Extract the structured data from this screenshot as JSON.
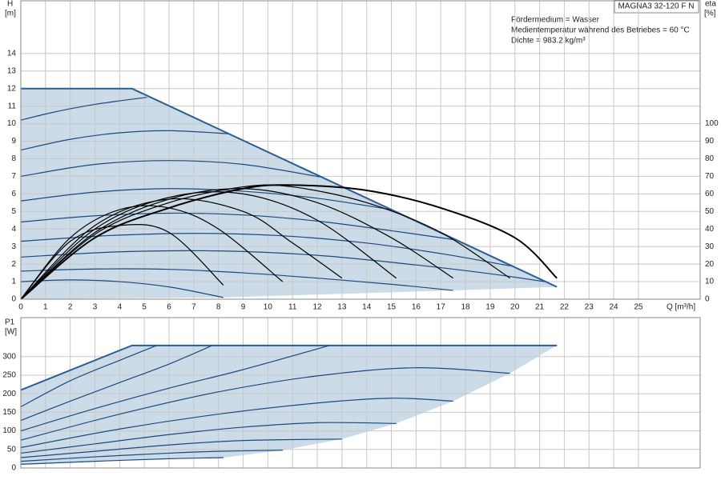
{
  "chart_data": [
    {
      "type": "line",
      "title": "MAGNA3 32-120 F N",
      "annotations": [
        "Fördermedium = Wasser",
        "Medientemperatur während des Betriebes = 60 °C",
        "Dichte = 983.2 kg/m³"
      ],
      "y_label": "H",
      "y_unit": "[m]",
      "y2_label": "eta",
      "y2_unit": "[%]",
      "x_label": "Q [m³/h]",
      "xlim": [
        0,
        27.5
      ],
      "xticks": [
        0,
        1,
        2,
        3,
        4,
        5,
        6,
        7,
        8,
        9,
        10,
        11,
        12,
        13,
        14,
        15,
        16,
        17,
        18,
        19,
        20,
        21,
        22,
        23,
        24,
        25
      ],
      "ylim": [
        0,
        17
      ],
      "yticks": [
        0,
        1,
        2,
        3,
        4,
        5,
        6,
        7,
        8,
        9,
        10,
        11,
        12,
        13,
        14
      ],
      "y2lim": [
        0,
        170
      ],
      "y2ticks": [
        0,
        10,
        20,
        30,
        40,
        50,
        60,
        70,
        80,
        90,
        100
      ],
      "grid": true,
      "area": {
        "color": "#cbdbe7",
        "x": [
          0,
          4.5,
          21.7,
          17.5,
          8.2,
          0
        ],
        "values": [
          12,
          12,
          0.7,
          0.5,
          0.1,
          0
        ]
      },
      "series": [
        {
          "color": "#2a5d96",
          "interpolation": "linear",
          "x": [
            0,
            4.5,
            21.7
          ],
          "values": [
            12,
            12,
            0.7
          ]
        },
        {
          "color": "#1b4a80",
          "x": [
            0,
            1,
            2,
            3,
            4,
            5.1
          ],
          "values": [
            10.2,
            10.55,
            10.85,
            11.1,
            11.3,
            11.5
          ]
        },
        {
          "color": "#1b4a80",
          "x": [
            0,
            2,
            4,
            6,
            8.4
          ],
          "values": [
            8.5,
            9.11,
            9.48,
            9.6,
            9.43
          ]
        },
        {
          "color": "#1b4a80",
          "x": [
            0,
            3,
            6,
            9,
            12.1
          ],
          "values": [
            7.0,
            7.68,
            7.9,
            7.68,
            6.97
          ]
        },
        {
          "color": "#1b4a80",
          "x": [
            0,
            3,
            6,
            9,
            12,
            15
          ],
          "values": [
            5.6,
            6.1,
            6.3,
            6.15,
            5.75,
            5.1
          ]
        },
        {
          "color": "#1b4a80",
          "x": [
            0,
            3,
            6,
            9,
            12,
            15,
            17.5
          ],
          "values": [
            4.4,
            4.75,
            4.9,
            4.8,
            4.45,
            3.9,
            3.4
          ]
        },
        {
          "color": "#1b4a80",
          "x": [
            0,
            3.5,
            7,
            10.5,
            14,
            17,
            19.8
          ],
          "values": [
            3.3,
            3.62,
            3.75,
            3.62,
            3.2,
            2.6,
            1.9
          ]
        },
        {
          "color": "#1b4a80",
          "x": [
            0,
            4,
            8,
            12,
            16,
            19,
            21.2
          ],
          "values": [
            2.4,
            2.7,
            2.75,
            2.5,
            1.95,
            1.45,
            1.0
          ]
        },
        {
          "color": "#1b4a80",
          "x": [
            0,
            3,
            6,
            9,
            12,
            15,
            17.5
          ],
          "values": [
            1.6,
            1.72,
            1.7,
            1.5,
            1.2,
            0.85,
            0.5
          ]
        },
        {
          "color": "#1b4a80",
          "x": [
            0,
            2,
            4,
            6,
            8.2
          ],
          "values": [
            1.0,
            1.1,
            1.0,
            0.7,
            0.1
          ]
        },
        {
          "color": "#000000",
          "axis": "y2",
          "x": [
            0,
            3,
            6,
            9,
            11,
            14,
            17,
            20,
            21.7
          ],
          "values": [
            0,
            35,
            52,
            63,
            65,
            62,
            52,
            35,
            12
          ]
        },
        {
          "color": "#000000",
          "axis": "y2",
          "x": [
            0,
            3,
            6,
            9,
            11,
            14,
            17,
            19.8
          ],
          "values": [
            0,
            37,
            55,
            64,
            64,
            55,
            38,
            12
          ]
        },
        {
          "color": "#000000",
          "axis": "y2",
          "x": [
            0,
            3,
            6,
            9,
            12,
            15,
            17.5
          ],
          "values": [
            0,
            38,
            57,
            63,
            55,
            35,
            12
          ]
        },
        {
          "color": "#000000",
          "axis": "y2",
          "x": [
            0,
            3,
            6,
            9,
            12,
            15.2
          ],
          "values": [
            0,
            40,
            58,
            60,
            45,
            12
          ]
        },
        {
          "color": "#000000",
          "axis": "y2",
          "x": [
            0,
            3,
            6,
            9,
            11,
            13
          ],
          "values": [
            0,
            42,
            57,
            50,
            32,
            12
          ]
        },
        {
          "color": "#000000",
          "axis": "y2",
          "x": [
            0,
            2,
            4,
            6,
            8,
            10.6
          ],
          "values": [
            0,
            35,
            51,
            52,
            40,
            10
          ]
        },
        {
          "color": "#000000",
          "axis": "y2",
          "x": [
            0,
            2,
            4,
            6,
            8.2
          ],
          "values": [
            0,
            33,
            42,
            38,
            8
          ]
        }
      ]
    },
    {
      "type": "line",
      "y_label": "P1",
      "y_unit": "[W]",
      "xlim": [
        0,
        27.5
      ],
      "xticks": [
        0,
        1,
        2,
        3,
        4,
        5,
        6,
        7,
        8,
        9,
        10,
        11,
        12,
        13,
        14,
        15,
        16,
        17,
        18,
        19,
        20,
        21,
        22,
        23,
        24,
        25
      ],
      "show_x_tick_labels": false,
      "ylim": [
        0,
        405
      ],
      "yticks": [
        0,
        50,
        100,
        150,
        200,
        250,
        300
      ],
      "grid": true,
      "area": {
        "color": "#cbdbe7",
        "x": [
          0,
          4.5,
          21.7,
          19.8,
          17.5,
          15.2,
          13,
          10.6,
          8.2,
          6,
          3,
          0
        ],
        "values": [
          210,
          330,
          330,
          255,
          180,
          120,
          78,
          48,
          28,
          25,
          18,
          10
        ]
      },
      "series": [
        {
          "color": "#2a5d96",
          "interpolation": "linear",
          "x": [
            0,
            4.5,
            21.7
          ],
          "values": [
            210,
            330,
            330
          ]
        },
        {
          "color": "#1b4a80",
          "x": [
            0,
            2,
            4,
            5.5
          ],
          "values": [
            165,
            235,
            290,
            330
          ]
        },
        {
          "color": "#1b4a80",
          "x": [
            0,
            2,
            4,
            6,
            7.75
          ],
          "values": [
            128,
            180,
            230,
            280,
            330
          ]
        },
        {
          "color": "#1b4a80",
          "x": [
            0,
            3,
            6,
            9,
            12.5
          ],
          "values": [
            100,
            160,
            215,
            265,
            330
          ]
        },
        {
          "color": "#1b4a80",
          "x": [
            0,
            4,
            8,
            12,
            16,
            19.8
          ],
          "values": [
            75,
            145,
            205,
            248,
            270,
            255
          ]
        },
        {
          "color": "#1b4a80",
          "x": [
            0,
            4,
            8,
            12,
            15,
            17.5
          ],
          "values": [
            55,
            105,
            145,
            175,
            188,
            180
          ]
        },
        {
          "color": "#1b4a80",
          "x": [
            0,
            3,
            6,
            9,
            12,
            15.2
          ],
          "values": [
            40,
            65,
            90,
            110,
            122,
            120
          ]
        },
        {
          "color": "#1b4a80",
          "x": [
            0,
            3,
            6,
            9,
            13
          ],
          "values": [
            28,
            45,
            62,
            74,
            78
          ]
        },
        {
          "color": "#1b4a80",
          "x": [
            0,
            3,
            6,
            8,
            10.6
          ],
          "values": [
            18,
            30,
            40,
            45,
            48
          ]
        },
        {
          "color": "#1b4a80",
          "x": [
            0,
            3,
            6,
            8.2
          ],
          "values": [
            10,
            18,
            25,
            28
          ]
        }
      ]
    }
  ]
}
